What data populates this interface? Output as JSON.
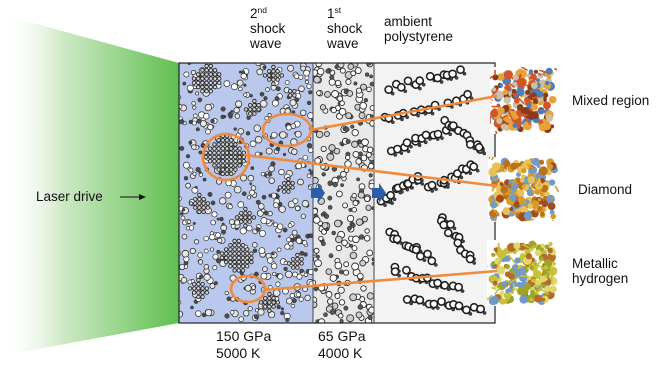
{
  "headers": {
    "second_shock": {
      "ordinal": "2",
      "suffix": "nd",
      "line2": "shock",
      "line3": "wave"
    },
    "first_shock": {
      "ordinal": "1",
      "suffix": "st",
      "line2": "shock",
      "line3": "wave"
    },
    "ambient": {
      "line1": "ambient",
      "line2": "polystyrene"
    }
  },
  "laser_label": "Laser drive",
  "conditions": {
    "second": {
      "pressure": "150 GPa",
      "temperature": "5000 K"
    },
    "first": {
      "pressure": "65 GPa",
      "temperature": "4000 K"
    }
  },
  "insets": [
    {
      "label": "Mixed region"
    },
    {
      "label": "Diamond"
    },
    {
      "label_line1": "Metallic",
      "label_line2": "hydrogen"
    }
  ],
  "colors": {
    "laser_green": "#5fbf4f",
    "compressed_region": "#b9c8ec",
    "first_shock_region": "#e9e9e9",
    "ambient_region": "#f3f3f3",
    "highlight_orange": "#f08a3c",
    "shock_arrow": "#2a5ea8"
  }
}
